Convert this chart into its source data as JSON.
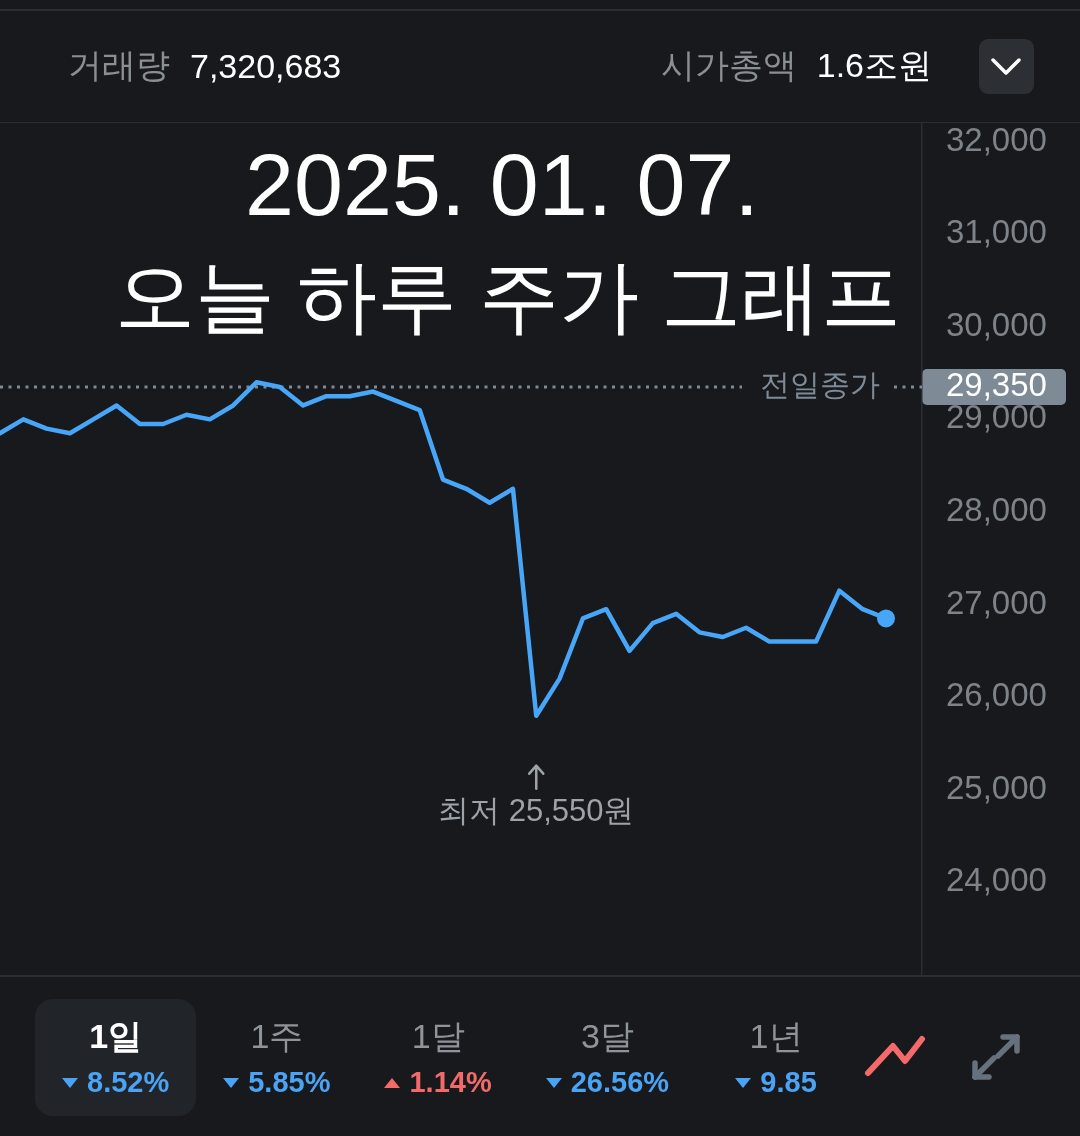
{
  "chart_data": [
    {
      "type": "other",
      "annotations": [
        "거래량",
        "7,320,683",
        "시가총액",
        "1.6조원"
      ]
    },
    {
      "type": "line",
      "title": "2025. 01. 07.",
      "subtitle": "오늘 하루 주가 그래프",
      "categories": [
        null,
        null,
        null,
        null,
        null,
        null,
        null,
        null,
        null,
        null,
        null,
        null,
        null,
        null,
        null,
        null,
        null,
        null,
        null,
        null,
        null,
        null,
        null,
        null,
        null,
        null,
        null,
        null,
        null,
        null,
        null,
        null,
        null,
        null,
        null,
        null,
        null,
        null,
        null
      ],
      "series": [
        {
          "color": "#47a6f8",
          "values": [
            28850,
            29000,
            28900,
            28850,
            29000,
            29150,
            28950,
            28950,
            29050,
            29000,
            29150,
            29400,
            29350,
            29150,
            29250,
            29250,
            29300,
            29200,
            29100,
            28350,
            28250,
            28100,
            28250,
            25800,
            26200,
            26850,
            26950,
            26500,
            26800,
            26900,
            26700,
            26650,
            26750,
            26600,
            26600,
            26600,
            27150,
            26950,
            26850
          ]
        },
        {
          "type": "scatter",
          "color": "#47a6f8",
          "marker": "circle",
          "values": [
            null,
            null,
            null,
            null,
            null,
            null,
            null,
            null,
            null,
            null,
            null,
            null,
            null,
            null,
            null,
            null,
            null,
            null,
            null,
            null,
            null,
            null,
            null,
            null,
            null,
            null,
            null,
            null,
            null,
            null,
            null,
            null,
            null,
            null,
            null,
            null,
            null,
            null,
            26850
          ]
        }
      ],
      "ylim": [
        23000,
        32200
      ],
      "yticks": [
        {
          "value": 24000,
          "label": "24,000"
        },
        {
          "value": 25000,
          "label": "25,000"
        },
        {
          "value": 26000,
          "label": "26,000"
        },
        {
          "value": 27000,
          "label": "27,000"
        },
        {
          "value": 28000,
          "label": "28,000"
        },
        {
          "value": 29000,
          "label": "29,000"
        },
        {
          "value": 29350,
          "label": "29,350"
        },
        {
          "value": 30000,
          "label": "30,000"
        },
        {
          "value": 31000,
          "label": "31,000"
        },
        {
          "value": 32000,
          "label": "32,000"
        }
      ],
      "ref_lines": [
        {
          "axis": "y",
          "value": 29350,
          "label": "전일종가",
          "line_style": "dotted",
          "color": "#7f8a97"
        }
      ],
      "annotations": [
        "최저 25,550원"
      ],
      "marker": "none"
    },
    {
      "type": "other",
      "categories": [
        "1일",
        "1주",
        "1달",
        "3달",
        "1년"
      ],
      "series": [
        {
          "color": "#4aa3f5",
          "values": [
            8.52,
            5.85,
            null,
            26.56,
            9.85
          ],
          "value_labels": [
            "8.52%",
            "5.85%",
            null,
            "26.56%",
            "9.85"
          ]
        },
        {
          "color": "#f26a6a",
          "values": [
            null,
            null,
            1.14,
            null,
            null
          ],
          "value_labels": [
            null,
            null,
            "1.14%",
            null,
            null
          ]
        }
      ]
    }
  ]
}
